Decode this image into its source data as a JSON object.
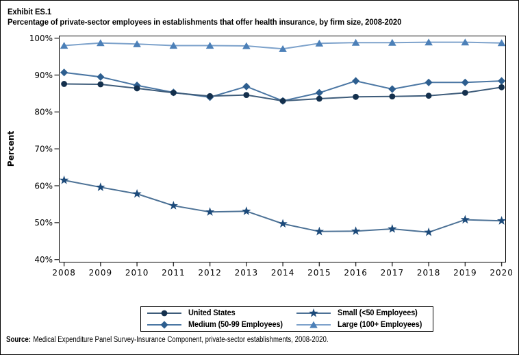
{
  "title": {
    "exhibit": "Exhibit ES.1",
    "line": "Percentage of private-sector employees in establishments that offer health insurance, by firm size, 2008-2020"
  },
  "source": {
    "label": "Source:",
    "text": "Medical Expenditure Panel Survey-Insurance Component, private-sector establishments, 2008-2020."
  },
  "chart_data": {
    "type": "line",
    "title": "Percentage of private-sector employees in establishments that offer health insurance, by firm size, 2008-2020",
    "xlabel": "",
    "ylabel": "Percent",
    "x": [
      "2008",
      "2009",
      "2010",
      "2011",
      "2012",
      "2013",
      "2014",
      "2015",
      "2016",
      "2017",
      "2018",
      "2019",
      "2020"
    ],
    "ylim": [
      40,
      100
    ],
    "yticks": [
      100,
      90,
      80,
      70,
      60,
      50,
      40
    ],
    "ytick_suffix": "%",
    "grid": false,
    "legend_position": "bottom-box-2col",
    "series": [
      {
        "name": "United States",
        "marker": "circle",
        "marker_color": "#14304d",
        "line_color": "#3e5c7a",
        "values": [
          87.6,
          87.5,
          86.4,
          85.2,
          84.3,
          84.6,
          83.0,
          83.6,
          84.1,
          84.2,
          84.4,
          85.2,
          86.7
        ]
      },
      {
        "name": "Medium (50-99 Employees)",
        "marker": "diamond",
        "marker_color": "#2d5e8f",
        "line_color": "#4a76a3",
        "values": [
          90.7,
          89.5,
          87.2,
          85.3,
          84.0,
          86.9,
          83.0,
          85.2,
          88.4,
          86.2,
          88.0,
          88.0,
          88.4
        ]
      },
      {
        "name": "Small (<50 Employees)",
        "marker": "star",
        "marker_color": "#1c4a7a",
        "line_color": "#4d7296",
        "values": [
          61.5,
          59.6,
          57.8,
          54.6,
          52.9,
          53.1,
          49.7,
          47.6,
          47.7,
          48.3,
          47.4,
          50.8,
          50.5
        ]
      },
      {
        "name": "Large (100+ Employees)",
        "marker": "triangle",
        "marker_color": "#4c80b8",
        "line_color": "#7da2cb",
        "values": [
          98.0,
          98.7,
          98.4,
          98.0,
          98.0,
          97.9,
          97.1,
          98.6,
          98.8,
          98.8,
          98.9,
          98.9,
          98.7
        ]
      }
    ],
    "draw_order": [
      3,
      1,
      0,
      2
    ],
    "legend_order": [
      0,
      2,
      1,
      3
    ]
  }
}
